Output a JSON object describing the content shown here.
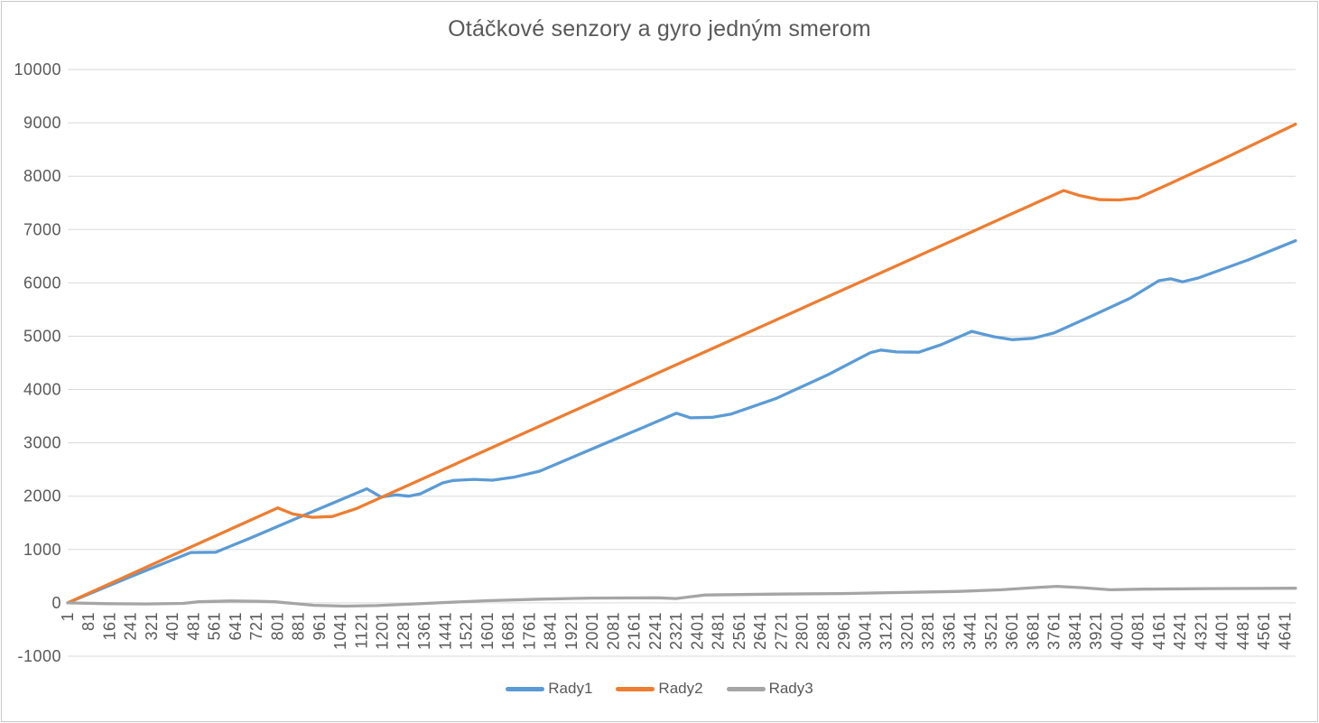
{
  "chart": {
    "colors": {
      "series_blue": "#5B9BD5",
      "series_orange": "#ED7D31",
      "series_gray": "#A5A5A5",
      "gridline": "#D9D9D9",
      "axis_text": "#595959",
      "title_text": "#595959",
      "border": "#C9C9C9",
      "background": "#FFFFFF"
    }
  },
  "chart_data": {
    "type": "line",
    "title": "Otáčkové senzory a gyro jedným smerom",
    "x_axis": {
      "first_label": 1,
      "label_step": 80,
      "last_label": 4641,
      "range": [
        1,
        4681
      ],
      "label_rotation_deg": -90
    },
    "y_axis": {
      "min": -1000,
      "max": 10000,
      "tick_step": 1000,
      "gridlines": true
    },
    "legend": {
      "position": "bottom",
      "entries": [
        "Rady1",
        "Rady2",
        "Rady3"
      ]
    },
    "series": [
      {
        "name": "Rady1",
        "color": "#5B9BD5",
        "points": [
          [
            1,
            0
          ],
          [
            240,
            490
          ],
          [
            470,
            945
          ],
          [
            565,
            950
          ],
          [
            700,
            1220
          ],
          [
            900,
            1640
          ],
          [
            1050,
            1950
          ],
          [
            1141,
            2140
          ],
          [
            1195,
            1985
          ],
          [
            1255,
            2025
          ],
          [
            1300,
            2000
          ],
          [
            1345,
            2045
          ],
          [
            1430,
            2250
          ],
          [
            1470,
            2295
          ],
          [
            1550,
            2315
          ],
          [
            1620,
            2300
          ],
          [
            1700,
            2355
          ],
          [
            1800,
            2470
          ],
          [
            2050,
            2990
          ],
          [
            2200,
            3300
          ],
          [
            2321,
            3555
          ],
          [
            2375,
            3470
          ],
          [
            2460,
            3480
          ],
          [
            2530,
            3540
          ],
          [
            2700,
            3830
          ],
          [
            2900,
            4280
          ],
          [
            3060,
            4690
          ],
          [
            3100,
            4740
          ],
          [
            3160,
            4705
          ],
          [
            3245,
            4700
          ],
          [
            3330,
            4840
          ],
          [
            3447,
            5090
          ],
          [
            3530,
            4990
          ],
          [
            3600,
            4935
          ],
          [
            3680,
            4960
          ],
          [
            3760,
            5060
          ],
          [
            3900,
            5370
          ],
          [
            4050,
            5710
          ],
          [
            4160,
            6040
          ],
          [
            4205,
            6075
          ],
          [
            4250,
            6020
          ],
          [
            4310,
            6090
          ],
          [
            4500,
            6430
          ],
          [
            4681,
            6790
          ]
        ]
      },
      {
        "name": "Rady2",
        "color": "#ED7D31",
        "points": [
          [
            1,
            0
          ],
          [
            400,
            890
          ],
          [
            801,
            1780
          ],
          [
            860,
            1665
          ],
          [
            935,
            1605
          ],
          [
            1010,
            1620
          ],
          [
            1100,
            1765
          ],
          [
            1500,
            2650
          ],
          [
            2000,
            3755
          ],
          [
            2500,
            4860
          ],
          [
            3000,
            5965
          ],
          [
            3400,
            6850
          ],
          [
            3600,
            7295
          ],
          [
            3797,
            7730
          ],
          [
            3860,
            7635
          ],
          [
            3935,
            7560
          ],
          [
            4010,
            7555
          ],
          [
            4080,
            7590
          ],
          [
            4200,
            7855
          ],
          [
            4400,
            8310
          ],
          [
            4681,
            8975
          ]
        ]
      },
      {
        "name": "Rady3",
        "color": "#A5A5A5",
        "points": [
          [
            1,
            0
          ],
          [
            150,
            -15
          ],
          [
            300,
            -20
          ],
          [
            440,
            -10
          ],
          [
            500,
            20
          ],
          [
            620,
            35
          ],
          [
            720,
            30
          ],
          [
            790,
            20
          ],
          [
            860,
            -10
          ],
          [
            940,
            -45
          ],
          [
            1060,
            -60
          ],
          [
            1180,
            -50
          ],
          [
            1300,
            -25
          ],
          [
            1430,
            5
          ],
          [
            1600,
            40
          ],
          [
            1800,
            70
          ],
          [
            2000,
            90
          ],
          [
            2250,
            95
          ],
          [
            2320,
            82
          ],
          [
            2430,
            148
          ],
          [
            2700,
            165
          ],
          [
            2950,
            175
          ],
          [
            3180,
            195
          ],
          [
            3400,
            215
          ],
          [
            3560,
            245
          ],
          [
            3680,
            285
          ],
          [
            3770,
            310
          ],
          [
            3870,
            285
          ],
          [
            3975,
            245
          ],
          [
            4100,
            258
          ],
          [
            4350,
            268
          ],
          [
            4681,
            275
          ]
        ]
      }
    ]
  }
}
